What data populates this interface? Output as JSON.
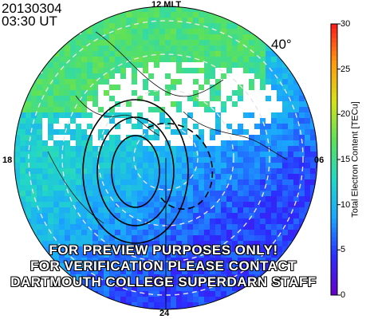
{
  "header": {
    "date": "20130304",
    "time": "03:30 UT"
  },
  "mlt_labels": {
    "noon": "12 MLT",
    "dusk": "18",
    "dawn": "06",
    "midnight": "24"
  },
  "latitude_label": "40°",
  "watermark": [
    "FOR PREVIEW PURPOSES ONLY!",
    "FOR VERIFICATION PLEASE CONTACT",
    "DARTMOUTH COLLEGE SUPERDARN STAFF"
  ],
  "colorbar": {
    "label": "Total Electron Content [TECu]",
    "min": 0,
    "max": 30,
    "ticks": [
      "0",
      "5",
      "10",
      "15",
      "20",
      "25",
      "30"
    ],
    "colormap": [
      "#6a00c8",
      "#2b2cff",
      "#1aa6ff",
      "#22d7c7",
      "#5be15b",
      "#d6e21a",
      "#ff9a10",
      "#ff1a1a"
    ]
  },
  "map": {
    "projection": "polar magnetic",
    "minimum_latitude": 40,
    "grid": "dashed latitude circles",
    "background_tec_night": 5,
    "background_tec_day": 12
  }
}
